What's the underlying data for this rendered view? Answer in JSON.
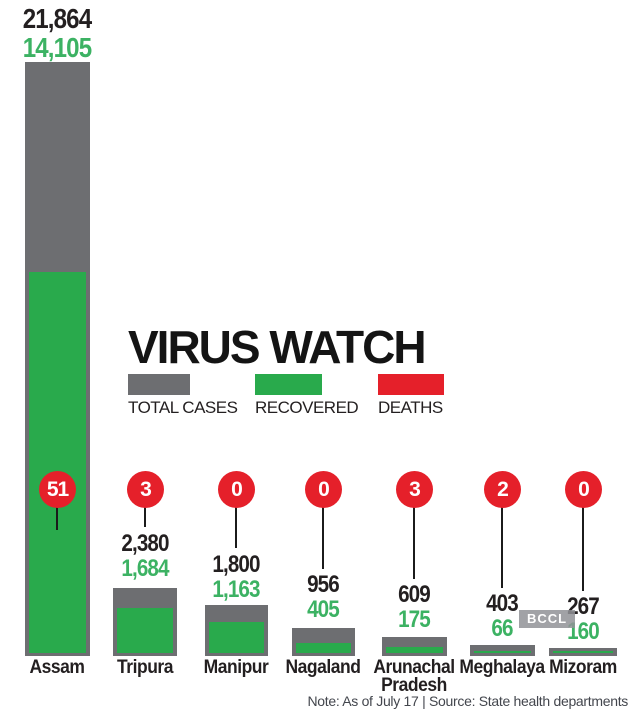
{
  "title": "VIRUS WATCH",
  "legend": {
    "total": {
      "label": "TOTAL CASES",
      "color": "#6d6e71"
    },
    "recovered": {
      "label": "RECOVERED",
      "color": "#29aa4c"
    },
    "deaths": {
      "label": "DEATHS",
      "color": "#e5202a"
    }
  },
  "states": [
    {
      "name": "Assam",
      "total": "21,864",
      "recovered": "14,105",
      "deaths": "51"
    },
    {
      "name": "Tripura",
      "total": "2,380",
      "recovered": "1,684",
      "deaths": "3"
    },
    {
      "name": "Manipur",
      "total": "1,800",
      "recovered": "1,163",
      "deaths": "0"
    },
    {
      "name": "Nagaland",
      "total": "956",
      "recovered": "405",
      "deaths": "0"
    },
    {
      "name": "Arunachal Pradesh",
      "total": "609",
      "recovered": "175",
      "deaths": "3"
    },
    {
      "name": "Meghalaya",
      "total": "403",
      "recovered": "66",
      "deaths": "2"
    },
    {
      "name": "Mizoram",
      "total": "267",
      "recovered": "160",
      "deaths": "0"
    }
  ],
  "note": "Note: As of July 17  |  Source: State health departments",
  "watermark": "BCCL",
  "chart_data": {
    "type": "bar",
    "title": "VIRUS WATCH",
    "categories": [
      "Assam",
      "Tripura",
      "Manipur",
      "Nagaland",
      "Arunachal Pradesh",
      "Meghalaya",
      "Mizoram"
    ],
    "series": [
      {
        "name": "TOTAL CASES",
        "color": "#6d6e71",
        "values": [
          21864,
          2380,
          1800,
          956,
          609,
          403,
          267
        ]
      },
      {
        "name": "RECOVERED",
        "color": "#29aa4c",
        "values": [
          14105,
          1684,
          1163,
          405,
          175,
          66,
          160
        ]
      },
      {
        "name": "DEATHS",
        "color": "#e5202a",
        "values": [
          51,
          3,
          0,
          0,
          3,
          2,
          0
        ]
      }
    ],
    "orientation": "vertical",
    "ylim": [
      0,
      21864
    ],
    "grid": false,
    "legend_position": "middle-left",
    "style": "infographic: recovered bar drawn inset inside total-cases bar; deaths shown as red circular badges with leader lines above each bar; values labeled above bars",
    "note": "Note: As of July 17 | Source: State health departments"
  }
}
